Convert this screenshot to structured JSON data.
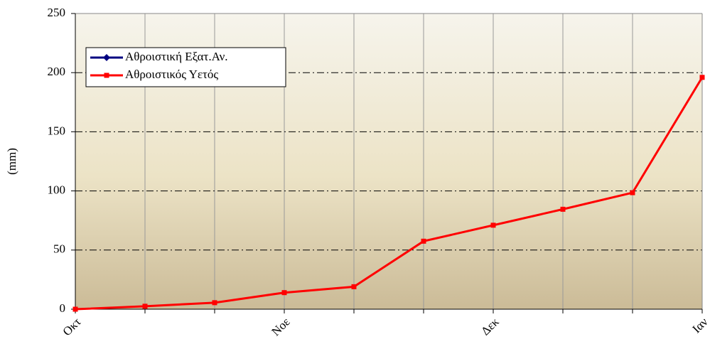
{
  "chart_data": {
    "type": "line",
    "y_label": "(mm)",
    "categories": [
      "Οκτ",
      null,
      null,
      "Νοε",
      null,
      null,
      "Δεκ",
      null,
      null,
      "Ιαν"
    ],
    "series": [
      {
        "name": "Αθροιστική Εξατ.Αν.",
        "color": "#000080",
        "marker": "diamond",
        "values": [
          null,
          null,
          null,
          null,
          null,
          null,
          null,
          null,
          null,
          null
        ]
      },
      {
        "name": "Αθροιστικός Υετός",
        "color": "#ff0000",
        "marker": "square",
        "values": [
          0,
          2.5,
          5.5,
          14,
          19,
          57.5,
          71,
          84.5,
          98.5,
          196
        ]
      }
    ],
    "ylim": [
      0,
      250
    ],
    "yticks": [
      0,
      50,
      100,
      150,
      200,
      250
    ],
    "grid": true,
    "legend": "upper left"
  }
}
